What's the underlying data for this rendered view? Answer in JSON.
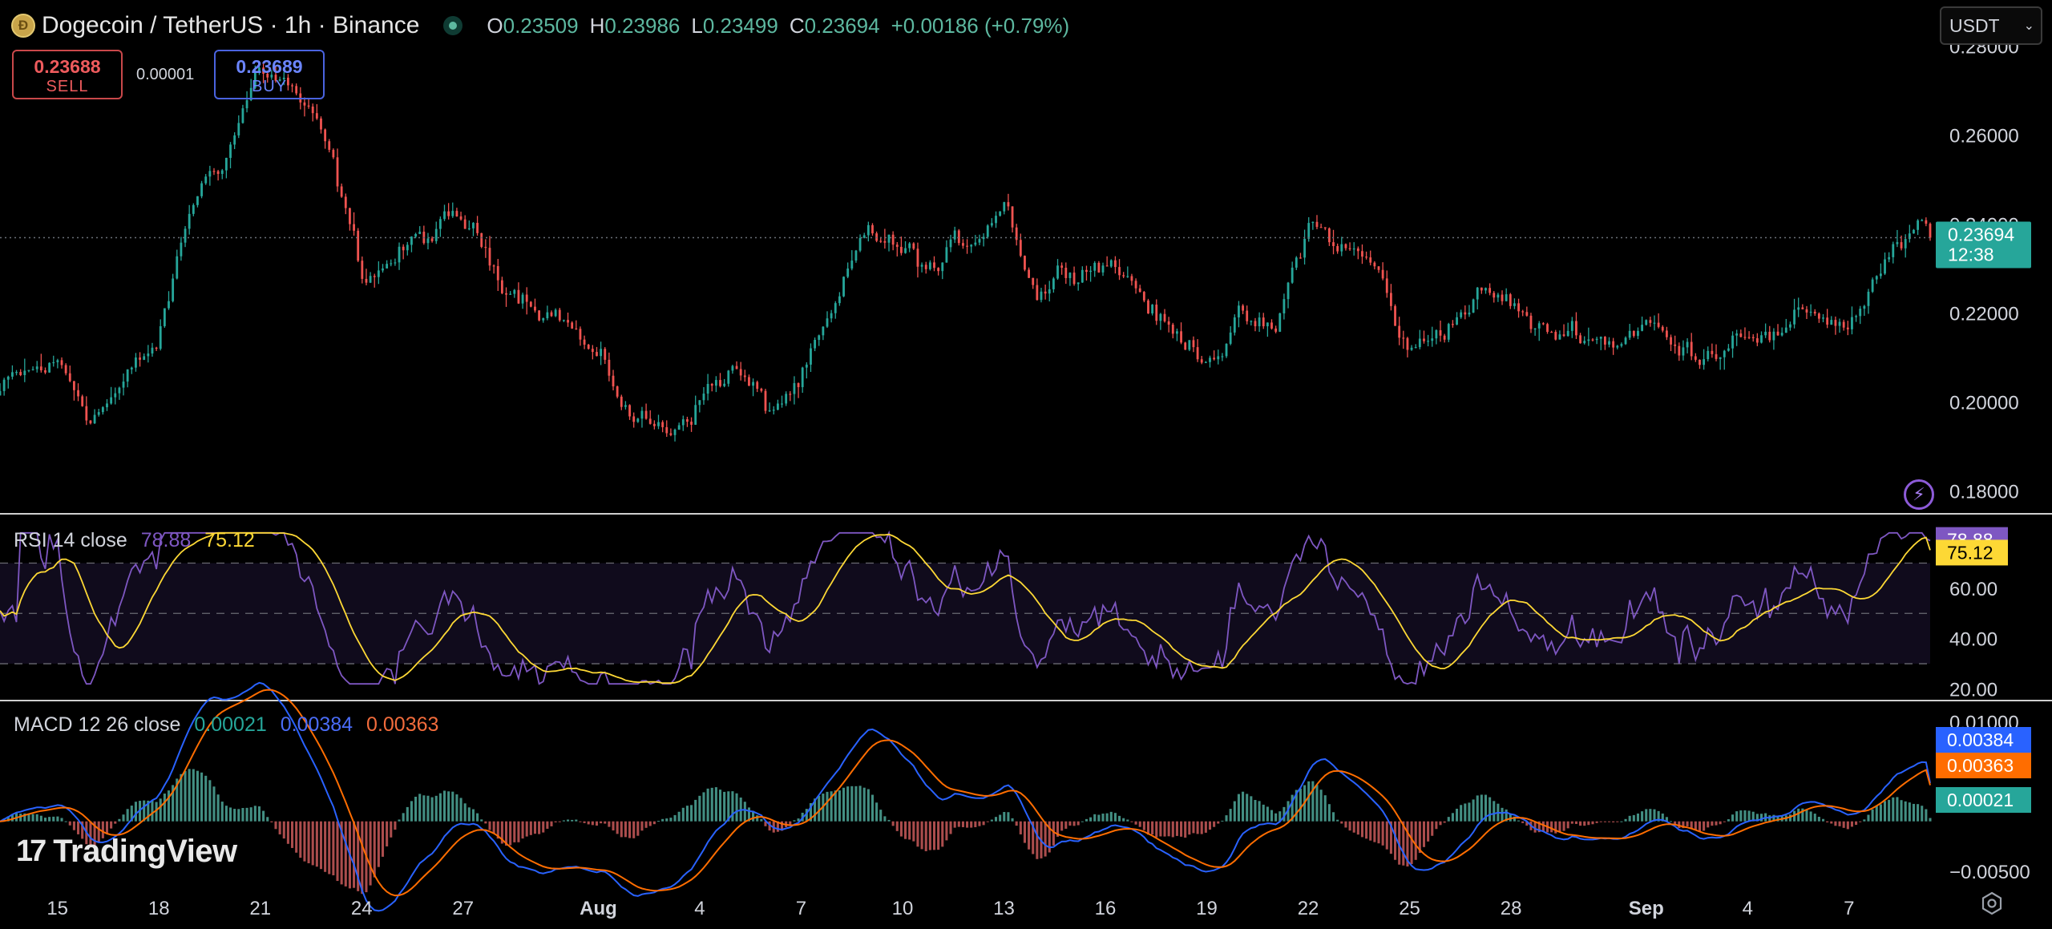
{
  "header": {
    "coin_icon_letter": "Ð",
    "symbol_title": "Dogecoin / TetherUS · 1h · Binance",
    "ohlc": {
      "o_label": "O",
      "o": "0.23509",
      "h_label": "H",
      "h": "0.23986",
      "l_label": "L",
      "l": "0.23499",
      "c_label": "C",
      "c": "0.23694",
      "change": "+0.00186 (+0.79%)"
    },
    "sell_price": "0.23688",
    "sell_label": "SELL",
    "spread": "0.00001",
    "buy_price": "0.23689",
    "buy_label": "BUY",
    "currency": "USDT"
  },
  "branding": {
    "name": "TradingView",
    "logo_glyph": "17"
  },
  "colors": {
    "up": "#26a69a",
    "down": "#ef5350",
    "rsi": "#7e57c2",
    "rsi_ma": "#fdd835",
    "macd": "#2962ff",
    "signal": "#ff6d00",
    "background": "#000000"
  },
  "chart_data": [
    {
      "type": "candlestick",
      "title": "Dogecoin / TetherUS · 1h · Binance",
      "ylim": [
        0.175,
        0.285
      ],
      "yticks": [
        "0.28000",
        "0.26000",
        "0.24000",
        "0.22000",
        "0.20000",
        "0.18000"
      ],
      "ytick_values": [
        0.28,
        0.26,
        0.24,
        0.22,
        0.2,
        0.18
      ],
      "x_ticks": [
        "15",
        "18",
        "21",
        "24",
        "27",
        "Aug",
        "4",
        "7",
        "10",
        "13",
        "16",
        "19",
        "22",
        "25",
        "28",
        "Sep",
        "4",
        "7"
      ],
      "x_tick_days": [
        2,
        5,
        8,
        11,
        14,
        18,
        21,
        24,
        27,
        30,
        33,
        36,
        39,
        42,
        45,
        49,
        52,
        55
      ],
      "x_range_days": [
        0.3,
        57.4
      ],
      "path_days": [
        0,
        1,
        2,
        3,
        4,
        5,
        6,
        7,
        8,
        9,
        10,
        11,
        12,
        13,
        14,
        15,
        16,
        17,
        18,
        19,
        20,
        21,
        22,
        23,
        24,
        25,
        26,
        27,
        28,
        29,
        30,
        31,
        32,
        33,
        34,
        35,
        36,
        37,
        38,
        39,
        40,
        41,
        42,
        43,
        44,
        45,
        46,
        47,
        48,
        49,
        50,
        51,
        52,
        53,
        54,
        55,
        56,
        57
      ],
      "path_close": [
        0.201,
        0.205,
        0.208,
        0.198,
        0.204,
        0.213,
        0.245,
        0.257,
        0.276,
        0.27,
        0.255,
        0.228,
        0.233,
        0.237,
        0.24,
        0.23,
        0.225,
        0.22,
        0.208,
        0.197,
        0.193,
        0.202,
        0.208,
        0.197,
        0.205,
        0.218,
        0.238,
        0.233,
        0.229,
        0.236,
        0.247,
        0.225,
        0.232,
        0.234,
        0.226,
        0.214,
        0.212,
        0.218,
        0.214,
        0.24,
        0.235,
        0.23,
        0.21,
        0.218,
        0.224,
        0.222,
        0.214,
        0.217,
        0.214,
        0.219,
        0.21,
        0.213,
        0.219,
        0.214,
        0.22,
        0.218,
        0.231,
        0.2369
      ],
      "last_price": "0.23694",
      "last_value": 0.23694,
      "countdown": "12:38"
    },
    {
      "type": "line",
      "title": "RSI 14 close",
      "series": [
        {
          "name": "RSI",
          "last": "78.88",
          "last_value": 78.88
        },
        {
          "name": "RSI-based MA",
          "last": "75.12",
          "last_value": 75.12
        }
      ],
      "ylim": [
        16,
        88
      ],
      "yticks": [
        "60.00",
        "40.00",
        "20.00"
      ],
      "ytick_values": [
        60,
        40,
        20
      ],
      "bands": [
        70,
        50,
        30
      ]
    },
    {
      "type": "line",
      "title": "MACD 12 26 close",
      "series": [
        {
          "name": "Histogram",
          "last": "0.00021",
          "last_value": 0.00021
        },
        {
          "name": "MACD",
          "last": "0.00384",
          "last_value": 0.00384
        },
        {
          "name": "Signal",
          "last": "0.00363",
          "last_value": 0.00363
        }
      ],
      "ylim": [
        -0.0067,
        0.0118
      ],
      "yticks": [
        "0.01000",
        "−0.00500"
      ],
      "ytick_values": [
        0.01,
        -0.005
      ]
    }
  ]
}
